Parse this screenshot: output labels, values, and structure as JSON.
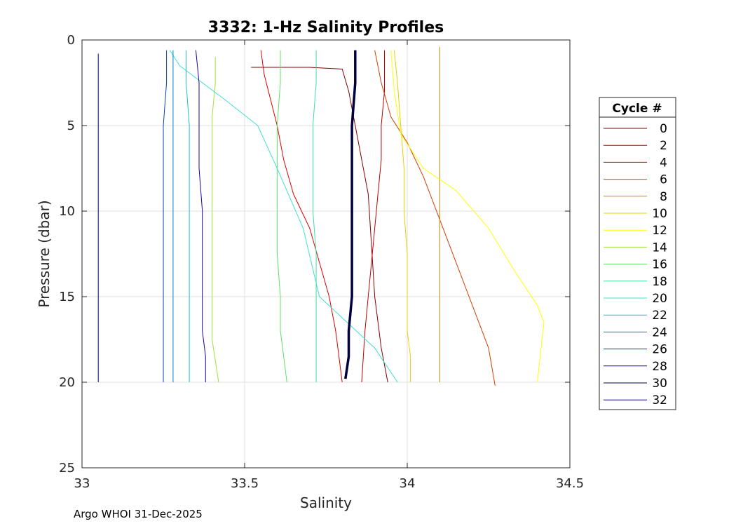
{
  "footer": "Argo WHOI 31-Dec-2025",
  "chart_data": {
    "type": "line",
    "title": "3332: 1-Hz Salinity Profiles",
    "xlabel": "Salinity",
    "ylabel": "Pressure (dbar)",
    "xlim": [
      33,
      34.5
    ],
    "ylim": [
      0,
      25
    ],
    "y_reversed": true,
    "xticks": [
      "33",
      "33.5",
      "34",
      "34.5"
    ],
    "yticks": [
      "0",
      "5",
      "10",
      "15",
      "20",
      "25"
    ],
    "grid": true,
    "legend": {
      "title": "Cycle #",
      "placement": "right-outside"
    },
    "series": [
      {
        "name": "0",
        "color": "#800000",
        "x": [
          33.52,
          33.7,
          33.8,
          33.82,
          33.85,
          33.88,
          33.89,
          33.9,
          33.92,
          33.94
        ],
        "y": [
          1.6,
          1.6,
          1.7,
          3.0,
          6.0,
          9.0,
          12.0,
          15.0,
          18.0,
          20.0
        ]
      },
      {
        "name": "2",
        "color": "#c00000",
        "x": [
          33.93,
          33.93,
          33.92,
          33.92,
          33.91,
          33.9,
          33.89,
          33.88,
          33.87,
          33.86
        ],
        "y": [
          0.6,
          3.0,
          5.0,
          7.0,
          9.0,
          11.0,
          13.0,
          15.0,
          17.0,
          20.0
        ]
      },
      {
        "name": "4",
        "color": "#e00000",
        "x": [
          33.55,
          33.56,
          33.6,
          33.62,
          33.65,
          33.7,
          33.73,
          33.76,
          33.78,
          33.8
        ],
        "y": [
          0.6,
          2.0,
          5.0,
          7.0,
          9.0,
          11.0,
          13.0,
          15.0,
          17.0,
          20.0
        ]
      },
      {
        "name": "6",
        "color": "#d04000",
        "x": [
          33.9,
          33.92,
          33.95,
          34.0,
          34.05,
          34.1,
          34.15,
          34.2,
          34.25,
          34.27
        ],
        "y": [
          0.6,
          2.5,
          4.5,
          6.0,
          8.0,
          10.5,
          13.0,
          15.5,
          18.0,
          20.2
        ]
      },
      {
        "name": "8",
        "color": "#e08000",
        "x": [
          34.1,
          34.1,
          34.1,
          34.1,
          34.1,
          34.1,
          34.1,
          34.1,
          34.1,
          34.1
        ],
        "y": [
          0.4,
          2.5,
          5.0,
          7.5,
          10.0,
          12.5,
          15.0,
          17.0,
          18.5,
          20.0
        ]
      },
      {
        "name": "10",
        "color": "#e8d000",
        "x": [
          33.96,
          33.97,
          33.98,
          33.99,
          33.99,
          34.0,
          34.0,
          34.0,
          34.01,
          34.01
        ],
        "y": [
          0.6,
          2.5,
          5.0,
          7.5,
          10.0,
          12.5,
          15.0,
          17.0,
          18.5,
          20.0
        ]
      },
      {
        "name": "12",
        "color": "#ffff00",
        "x": [
          33.95,
          33.96,
          33.98,
          34.05,
          34.15,
          34.25,
          34.33,
          34.4,
          34.42,
          34.4
        ],
        "y": [
          0.6,
          3.0,
          5.5,
          7.5,
          8.8,
          11.0,
          13.5,
          15.5,
          16.5,
          20.0
        ]
      },
      {
        "name": "14",
        "color": "#a0e040",
        "x": [
          33.41,
          33.41,
          33.4,
          33.4,
          33.4,
          33.4,
          33.4,
          33.4,
          33.4,
          33.42
        ],
        "y": [
          1.0,
          2.5,
          4.5,
          6.0,
          8.0,
          10.0,
          12.5,
          15.0,
          17.5,
          20.0
        ]
      },
      {
        "name": "16",
        "color": "#60e060",
        "x": [
          33.61,
          33.61,
          33.6,
          33.6,
          33.6,
          33.6,
          33.61,
          33.61,
          33.62,
          33.63
        ],
        "y": [
          0.6,
          2.5,
          5.0,
          7.5,
          10.0,
          12.5,
          15.0,
          17.0,
          18.5,
          20.0
        ]
      },
      {
        "name": "18",
        "color": "#40e0a0",
        "x": [
          33.72,
          33.72,
          33.71,
          33.71,
          33.71,
          33.72,
          33.72,
          33.72,
          33.72,
          33.72
        ],
        "y": [
          0.6,
          2.5,
          5.0,
          7.5,
          10.0,
          12.5,
          15.0,
          17.0,
          18.5,
          20.0
        ]
      },
      {
        "name": "20",
        "color": "#40e0d0",
        "x": [
          33.27,
          33.3,
          33.37,
          33.44,
          33.54,
          33.6,
          33.68,
          33.73,
          33.9,
          33.97
        ],
        "y": [
          0.6,
          1.5,
          2.5,
          3.5,
          5.0,
          7.5,
          11.0,
          15.0,
          18.0,
          20.0
        ]
      },
      {
        "name": "22",
        "color": "#20c0d0",
        "x": [
          33.32,
          33.32,
          33.33,
          33.33,
          33.33,
          33.33,
          33.33,
          33.33,
          33.33,
          33.33
        ],
        "y": [
          0.6,
          2.5,
          5.0,
          7.5,
          10.0,
          12.5,
          15.0,
          17.0,
          18.5,
          20.0
        ]
      },
      {
        "name": "24",
        "color": "#0080c0",
        "x": [
          33.28,
          33.28,
          33.28,
          33.28,
          33.28,
          33.28,
          33.28,
          33.28,
          33.28,
          33.28
        ],
        "y": [
          0.6,
          2.5,
          5.0,
          7.5,
          10.0,
          12.5,
          15.0,
          17.0,
          18.5,
          20.0
        ]
      },
      {
        "name": "26",
        "color": "#0040c0",
        "x": [
          33.26,
          33.26,
          33.25,
          33.25,
          33.25,
          33.25,
          33.25,
          33.25,
          33.25,
          33.25
        ],
        "y": [
          0.6,
          2.5,
          5.0,
          7.5,
          10.0,
          12.5,
          15.0,
          17.0,
          18.5,
          20.0
        ]
      },
      {
        "name": "28",
        "color": "#2000a0",
        "x": [
          33.35,
          33.36,
          33.36,
          33.36,
          33.37,
          33.37,
          33.37,
          33.37,
          33.38,
          33.38
        ],
        "y": [
          0.6,
          2.5,
          5.0,
          7.5,
          10.0,
          12.5,
          15.0,
          17.0,
          18.5,
          20.0
        ]
      },
      {
        "name": "30",
        "color": "#000040",
        "x": [
          33.84,
          33.84,
          33.83,
          33.83,
          33.83,
          33.83,
          33.83,
          33.82,
          33.82,
          33.81
        ],
        "y": [
          0.6,
          2.5,
          5.0,
          7.5,
          10.0,
          12.5,
          15.0,
          17.0,
          18.5,
          19.8
        ]
      },
      {
        "name": "32",
        "color": "#000080",
        "x": [
          33.05,
          33.05,
          33.05,
          33.05,
          33.05,
          33.05,
          33.05,
          33.05,
          33.05,
          33.05
        ],
        "y": [
          0.8,
          2.5,
          5.0,
          7.5,
          10.0,
          12.5,
          15.0,
          17.0,
          18.5,
          20.0
        ]
      }
    ]
  }
}
